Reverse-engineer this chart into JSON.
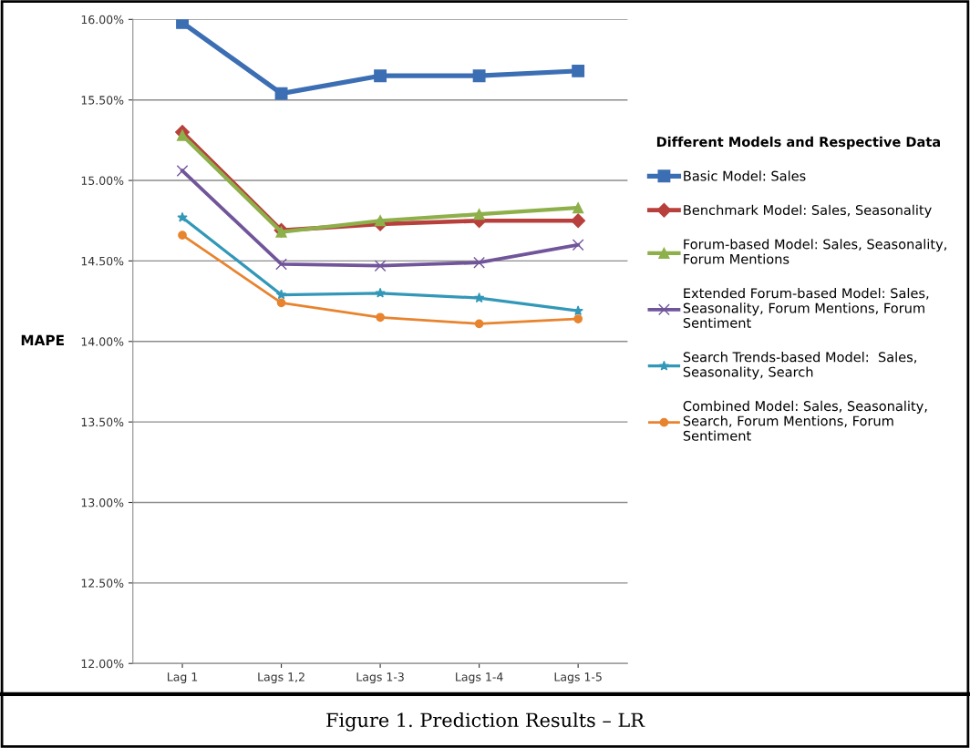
{
  "chart_data": {
    "type": "line",
    "ylabel": "MAPE",
    "legend_title": "Different Models and Respective Data",
    "annotations": [
      "Figure 1. Prediction Results – LR"
    ],
    "categories": [
      "Lag 1",
      "Lags 1,2",
      "Lags 1-3",
      "Lags 1-4",
      "Lags 1-5"
    ],
    "ylim": [
      12.0,
      16.0
    ],
    "yticks": [
      {
        "value": 12.0,
        "label": "12.00%"
      },
      {
        "value": 12.5,
        "label": "12.50%"
      },
      {
        "value": 13.0,
        "label": "13.00%"
      },
      {
        "value": 13.5,
        "label": "13.50%"
      },
      {
        "value": 14.0,
        "label": "14.00%"
      },
      {
        "value": 14.5,
        "label": "14.50%"
      },
      {
        "value": 15.0,
        "label": "15.00%"
      },
      {
        "value": 15.5,
        "label": "15.50%"
      },
      {
        "value": 16.0,
        "label": "16.00%"
      }
    ],
    "grid": "y",
    "legend": "right",
    "line_style": "solid",
    "series": [
      {
        "name": "Basic Model: Sales",
        "color": "#3c6eb4",
        "marker": "square",
        "values": [
          15.98,
          15.54,
          15.65,
          15.65,
          15.68
        ]
      },
      {
        "name": "Benchmark Model: Sales, Seasonality",
        "color": "#b8403c",
        "marker": "diamond",
        "values": [
          15.3,
          14.69,
          14.73,
          14.75,
          14.75
        ]
      },
      {
        "name": "Forum-based Model: Sales, Seasonality, Forum Mentions",
        "color": "#8db04a",
        "marker": "triangle",
        "values": [
          15.28,
          14.68,
          14.75,
          14.79,
          14.83
        ]
      },
      {
        "name": "Extended Forum-based Model: Sales, Seasonality, Forum Mentions, Forum Sentiment",
        "color": "#71559a",
        "marker": "cross",
        "values": [
          15.06,
          14.48,
          14.47,
          14.49,
          14.6
        ]
      },
      {
        "name": "Search Trends-based Model:  Sales, Seasonality, Search",
        "color": "#3398b8",
        "marker": "star",
        "values": [
          14.77,
          14.29,
          14.3,
          14.27,
          14.19
        ]
      },
      {
        "name": "Combined Model: Sales, Seasonality, Search, Forum Mentions, Forum Sentiment",
        "color": "#e8832e",
        "marker": "circle",
        "values": [
          14.66,
          14.24,
          14.15,
          14.11,
          14.14
        ]
      }
    ]
  }
}
